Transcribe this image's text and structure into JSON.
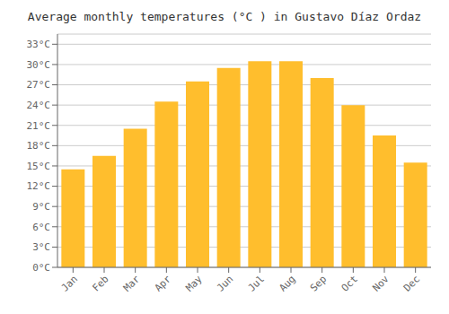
{
  "chart_data": {
    "type": "bar",
    "title": "Average monthly temperatures (°C ) in Gustavo Díaz Ordaz",
    "categories": [
      "Jan",
      "Feb",
      "Mar",
      "Apr",
      "May",
      "Jun",
      "Jul",
      "Aug",
      "Sep",
      "Oct",
      "Nov",
      "Dec"
    ],
    "values": [
      14.5,
      16.5,
      20.5,
      24.5,
      27.5,
      29.5,
      30.5,
      30.5,
      28.0,
      24.0,
      19.5,
      15.5
    ],
    "color": "#FFBE2D",
    "ylim": [
      0,
      34.5
    ],
    "yticks": [
      {
        "value": 0,
        "label": "0°C"
      },
      {
        "value": 3,
        "label": "3°C"
      },
      {
        "value": 6,
        "label": "6°C"
      },
      {
        "value": 9,
        "label": "9°C"
      },
      {
        "value": 12,
        "label": "12°C"
      },
      {
        "value": 15,
        "label": "15°C"
      },
      {
        "value": 18,
        "label": "18°C"
      },
      {
        "value": 21,
        "label": "21°C"
      },
      {
        "value": 24,
        "label": "24°C"
      },
      {
        "value": 27,
        "label": "27°C"
      },
      {
        "value": 30,
        "label": "30°C"
      },
      {
        "value": 33,
        "label": "33°C"
      }
    ],
    "grid": true
  }
}
